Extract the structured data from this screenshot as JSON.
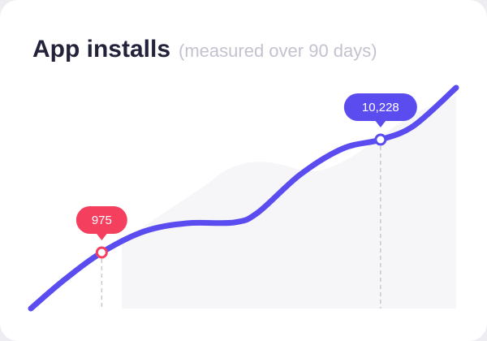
{
  "chart_data": {
    "type": "line",
    "title": "App installs",
    "subtitle": "(measured over 90 days)",
    "x": [
      0,
      7,
      15,
      24,
      33,
      43,
      48,
      57,
      66,
      74,
      81,
      90
    ],
    "xlim": [
      0,
      90
    ],
    "ylim": [
      -4284,
      15021
    ],
    "series": [
      {
        "name": "App installs",
        "color": "#5b4cf0",
        "values": [
          -3618,
          -1288,
          975,
          2706,
          3371,
          3438,
          4237,
          7366,
          9496,
          10228,
          11360,
          14489
        ],
        "value_labels": [
          null,
          null,
          "975",
          null,
          null,
          null,
          null,
          null,
          null,
          "10,228",
          null,
          null
        ],
        "value_label_colors": [
          null,
          null,
          "#f43f5e",
          null,
          null,
          null,
          null,
          null,
          null,
          "#5b4cf0",
          null,
          null
        ]
      }
    ]
  }
}
